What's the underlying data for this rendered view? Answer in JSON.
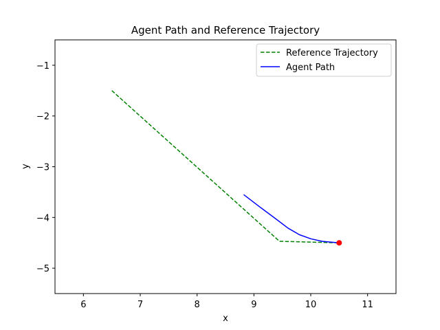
{
  "chart_data": {
    "type": "line",
    "title": "Agent Path and Reference Trajectory",
    "xlabel": "x",
    "ylabel": "y",
    "xlim": [
      5.5,
      11.5
    ],
    "ylim": [
      -5.5,
      -0.5
    ],
    "xticks": [
      6,
      7,
      8,
      9,
      10,
      11
    ],
    "yticks": [
      -1,
      -2,
      -3,
      -4,
      -5
    ],
    "xtick_labels": [
      "6",
      "7",
      "8",
      "9",
      "10",
      "11"
    ],
    "ytick_labels": [
      "−1",
      "−2",
      "−3",
      "−4",
      "−5"
    ],
    "grid": false,
    "legend_position": "top-right",
    "series": [
      {
        "name": "Reference Trajectory",
        "color": "#008000",
        "style": "dashed",
        "x": [
          6.5,
          9.45,
          10.5
        ],
        "y": [
          -1.5,
          -4.47,
          -4.5
        ]
      },
      {
        "name": "Agent Path",
        "color": "#0000ff",
        "style": "solid",
        "x": [
          8.82,
          9.1,
          9.4,
          9.6,
          9.8,
          10.0,
          10.2,
          10.4,
          10.5
        ],
        "y": [
          -3.55,
          -3.79,
          -4.04,
          -4.21,
          -4.34,
          -4.42,
          -4.47,
          -4.49,
          -4.5
        ]
      }
    ],
    "markers": [
      {
        "name": "current position",
        "x": 10.5,
        "y": -4.5,
        "color": "#ff0000"
      }
    ]
  }
}
